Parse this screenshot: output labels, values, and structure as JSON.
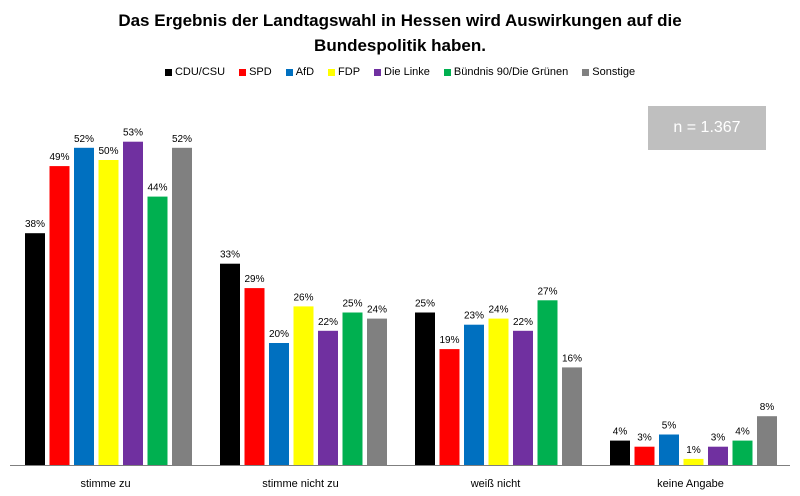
{
  "chart_data": {
    "type": "bar",
    "title": "Das Ergebnis der Landtagswahl in Hessen wird Auswirkungen auf die Bundespolitik haben.",
    "title_lines": [
      "Das Ergebnis der Landtagswahl in Hessen wird Auswirkungen auf die",
      "Bundespolitik haben."
    ],
    "categories": [
      "stimme zu",
      "stimme nicht zu",
      "weiß nicht",
      "keine Angabe"
    ],
    "series": [
      {
        "name": "CDU/CSU",
        "color": "#000000",
        "values": [
          38,
          33,
          25,
          4
        ]
      },
      {
        "name": "SPD",
        "color": "#ff0000",
        "values": [
          49,
          29,
          19,
          3
        ]
      },
      {
        "name": "AfD",
        "color": "#0070c0",
        "values": [
          52,
          20,
          23,
          5
        ]
      },
      {
        "name": "FDP",
        "color": "#ffff00",
        "values": [
          50,
          26,
          24,
          1
        ]
      },
      {
        "name": "Die Linke",
        "color": "#7030a0",
        "values": [
          53,
          22,
          22,
          3
        ]
      },
      {
        "name": "Bündnis 90/Die Grünen",
        "color": "#00b050",
        "values": [
          44,
          25,
          27,
          4
        ]
      },
      {
        "name": "Sonstige",
        "color": "#808080",
        "values": [
          52,
          24,
          16,
          8
        ]
      }
    ],
    "value_suffix": "%",
    "ylim": [
      0,
      60
    ],
    "legend_position": "top",
    "grid": false,
    "annotation": "n = 1.367"
  }
}
